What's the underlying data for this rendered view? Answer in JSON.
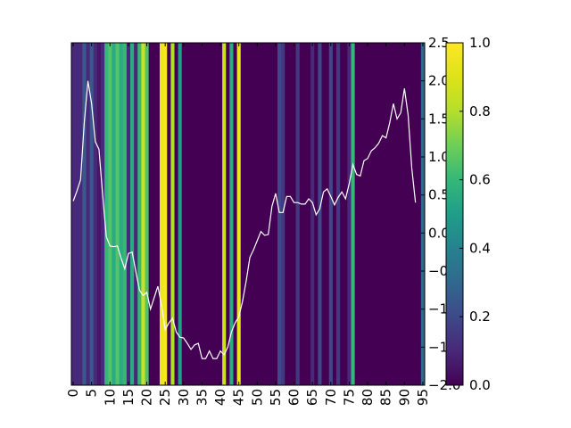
{
  "chart_data": {
    "type": "heatmap",
    "title": "",
    "xlabel": "",
    "ylabel": "",
    "grid": false,
    "x": {
      "range": [
        0,
        96
      ],
      "ticks": [
        0,
        5,
        10,
        15,
        20,
        25,
        30,
        35,
        40,
        45,
        50,
        55,
        60,
        65,
        70,
        75,
        80,
        85,
        90,
        95
      ],
      "tick_labels": [
        "0",
        "5",
        "10",
        "15",
        "20",
        "25",
        "30",
        "35",
        "40",
        "45",
        "50",
        "55",
        "60",
        "65",
        "70",
        "75",
        "80",
        "85",
        "90",
        "95"
      ],
      "tick_rotation": -90
    },
    "heat_strip": {
      "colormap": "viridis",
      "columns": [
        0.1,
        0.1,
        0.1,
        0.25,
        0.1,
        0.25,
        0.1,
        0.05,
        0.1,
        0.6,
        0.65,
        0.55,
        0.65,
        0.55,
        0.6,
        0.1,
        0.55,
        0.1,
        0.6,
        0.85,
        0.65,
        0.0,
        0.0,
        0.0,
        0.95,
        0.98,
        0.0,
        0.8,
        0.0,
        0.5,
        0.0,
        0.0,
        0.0,
        0.0,
        0.0,
        0.0,
        0.0,
        0.0,
        0.0,
        0.0,
        0.0,
        0.85,
        0.0,
        0.55,
        0.0,
        0.95,
        0.0,
        0.0,
        0.0,
        0.0,
        0.0,
        0.0,
        0.0,
        0.0,
        0.0,
        0.0,
        0.2,
        0.15,
        0.0,
        0.0,
        0.0,
        0.15,
        0.0,
        0.0,
        0.0,
        0.1,
        0.0,
        0.2,
        0.0,
        0.0,
        0.2,
        0.0,
        0.15,
        0.0,
        0.0,
        0.1,
        0.6,
        0.0,
        0.0,
        0.0,
        0.0,
        0.0,
        0.0,
        0.0,
        0.0,
        0.0,
        0.0,
        0.0,
        0.0,
        0.0,
        0.0,
        0.0,
        0.0,
        0.0,
        0.0,
        0.3
      ]
    },
    "colorbar": {
      "range": [
        0.0,
        1.0
      ],
      "ticks": [
        0.0,
        0.2,
        0.4,
        0.6,
        0.8,
        1.0
      ],
      "tick_labels": [
        "0.0",
        "0.2",
        "0.4",
        "0.6",
        "0.8",
        "1.0"
      ]
    },
    "y2": {
      "range": [
        -2.0,
        2.5
      ],
      "ticks": [
        -2.0,
        -1.5,
        -1.0,
        -0.5,
        0.0,
        0.5,
        1.0,
        1.5,
        2.0,
        2.5
      ],
      "tick_labels": [
        "−2.0",
        "−1.5",
        "−1.0",
        "−0.5",
        "0.0",
        "0.5",
        "1.0",
        "1.5",
        "2.0",
        "2.5"
      ]
    },
    "series": [
      {
        "color": "#ffffff",
        "values": [
          0.42,
          0.55,
          0.7,
          1.45,
          2.0,
          1.7,
          1.2,
          1.1,
          0.5,
          -0.05,
          -0.17,
          -0.18,
          -0.17,
          -0.33,
          -0.47,
          -0.27,
          -0.25,
          -0.5,
          -0.75,
          -0.82,
          -0.78,
          -1.0,
          -0.85,
          -0.7,
          -0.95,
          -1.27,
          -1.18,
          -1.12,
          -1.3,
          -1.37,
          -1.38,
          -1.45,
          -1.53,
          -1.47,
          -1.45,
          -1.65,
          -1.65,
          -1.55,
          -1.65,
          -1.65,
          -1.55,
          -1.6,
          -1.5,
          -1.3,
          -1.18,
          -1.1,
          -0.9,
          -0.63,
          -0.32,
          -0.22,
          -0.1,
          0.02,
          -0.03,
          -0.02,
          0.35,
          0.52,
          0.27,
          0.27,
          0.48,
          0.48,
          0.4,
          0.4,
          0.38,
          0.38,
          0.45,
          0.4,
          0.24,
          0.32,
          0.54,
          0.58,
          0.48,
          0.37,
          0.47,
          0.54,
          0.45,
          0.65,
          0.9,
          0.77,
          0.75,
          0.95,
          0.98,
          1.08,
          1.12,
          1.18,
          1.28,
          1.25,
          1.45,
          1.7,
          1.5,
          1.58,
          1.9,
          1.55,
          0.85,
          0.4
        ]
      }
    ]
  }
}
